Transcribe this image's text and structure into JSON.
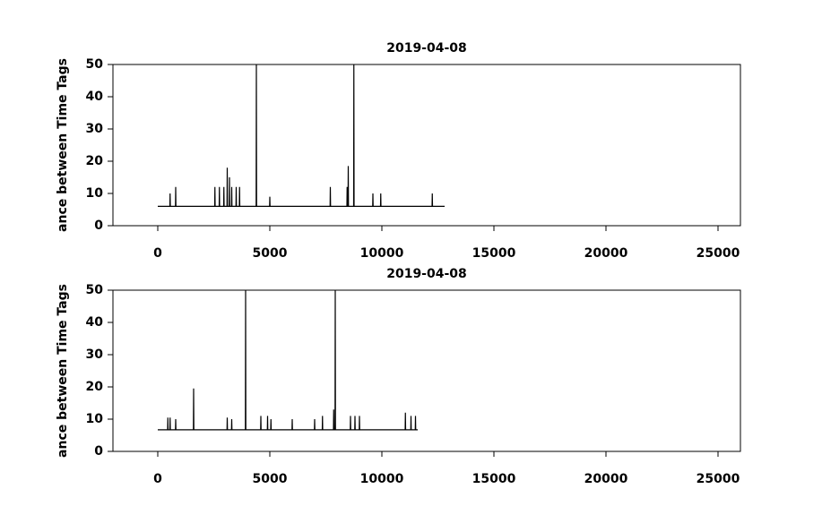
{
  "chart_data": [
    {
      "type": "line",
      "title": "2019-04-08",
      "y_label": "ance between Time Tags",
      "color": "#000000",
      "xlim": [
        -2000,
        26000
      ],
      "xticks": [
        0,
        5000,
        10000,
        15000,
        20000,
        25000
      ],
      "ylim": [
        0,
        50
      ],
      "yticks": [
        0,
        10,
        20,
        30,
        40,
        50
      ],
      "x": [
        0,
        540,
        550,
        560,
        790,
        800,
        810,
        2540,
        2550,
        2560,
        2740,
        2750,
        2760,
        2940,
        2950,
        2960,
        3090,
        3100,
        3110,
        3190,
        3200,
        3210,
        3290,
        3300,
        3310,
        3490,
        3500,
        3510,
        3640,
        3650,
        3660,
        4390,
        4400,
        4410,
        4990,
        5000,
        5010,
        7690,
        7700,
        7710,
        8440,
        8450,
        8460,
        8490,
        8500,
        8510,
        8740,
        8750,
        8760,
        9590,
        9600,
        9610,
        9940,
        9950,
        9960,
        12240,
        12250,
        12260,
        12800
      ],
      "y": [
        6,
        6,
        10,
        6,
        6,
        12,
        6,
        6,
        12,
        6,
        6,
        12,
        6,
        6,
        12,
        6,
        6,
        18,
        6,
        6,
        15,
        6,
        6,
        12,
        6,
        6,
        12,
        6,
        6,
        12,
        6,
        6,
        50,
        6,
        6,
        9,
        6,
        6,
        12,
        6,
        6,
        12,
        6,
        6,
        18.5,
        6,
        6,
        50,
        6,
        6,
        10,
        6,
        6,
        10,
        6,
        6,
        10,
        6,
        6
      ]
    },
    {
      "type": "line",
      "title": "2019-04-08",
      "y_label": "ance between Time Tags",
      "color": "#000000",
      "xlim": [
        -2000,
        26000
      ],
      "xticks": [
        0,
        5000,
        10000,
        15000,
        20000,
        25000
      ],
      "ylim": [
        0,
        50
      ],
      "yticks": [
        0,
        10,
        20,
        30,
        40,
        50
      ],
      "x": [
        0,
        440,
        450,
        460,
        540,
        550,
        560,
        790,
        800,
        810,
        1590,
        1600,
        1610,
        3090,
        3100,
        3110,
        3290,
        3300,
        3310,
        3910,
        3920,
        3930,
        4590,
        4600,
        4610,
        4890,
        4900,
        4910,
        5040,
        5050,
        5060,
        5990,
        6000,
        6010,
        6990,
        7000,
        7010,
        7340,
        7350,
        7360,
        7840,
        7850,
        7860,
        7910,
        7920,
        7930,
        8590,
        8600,
        8610,
        8790,
        8800,
        8810,
        8990,
        9000,
        9010,
        11040,
        11050,
        11060,
        11290,
        11300,
        11310,
        11490,
        11500,
        11510,
        11600
      ],
      "y": [
        6.7,
        6.7,
        10.5,
        6.7,
        6.7,
        10.5,
        6.7,
        6.7,
        10,
        6.7,
        6.7,
        19.5,
        6.7,
        6.7,
        10.5,
        6.7,
        6.7,
        10,
        6.7,
        6.7,
        50,
        6.7,
        6.7,
        11,
        6.7,
        6.7,
        11,
        6.7,
        6.7,
        10,
        6.7,
        6.7,
        10,
        6.7,
        6.7,
        10,
        6.7,
        6.7,
        11,
        6.7,
        6.7,
        13,
        6.7,
        6.7,
        50,
        6.7,
        6.7,
        11,
        6.7,
        6.7,
        11,
        6.7,
        6.7,
        11,
        6.7,
        6.7,
        12,
        6.7,
        6.7,
        11,
        6.7,
        6.7,
        11,
        6.7,
        6.7
      ]
    }
  ]
}
